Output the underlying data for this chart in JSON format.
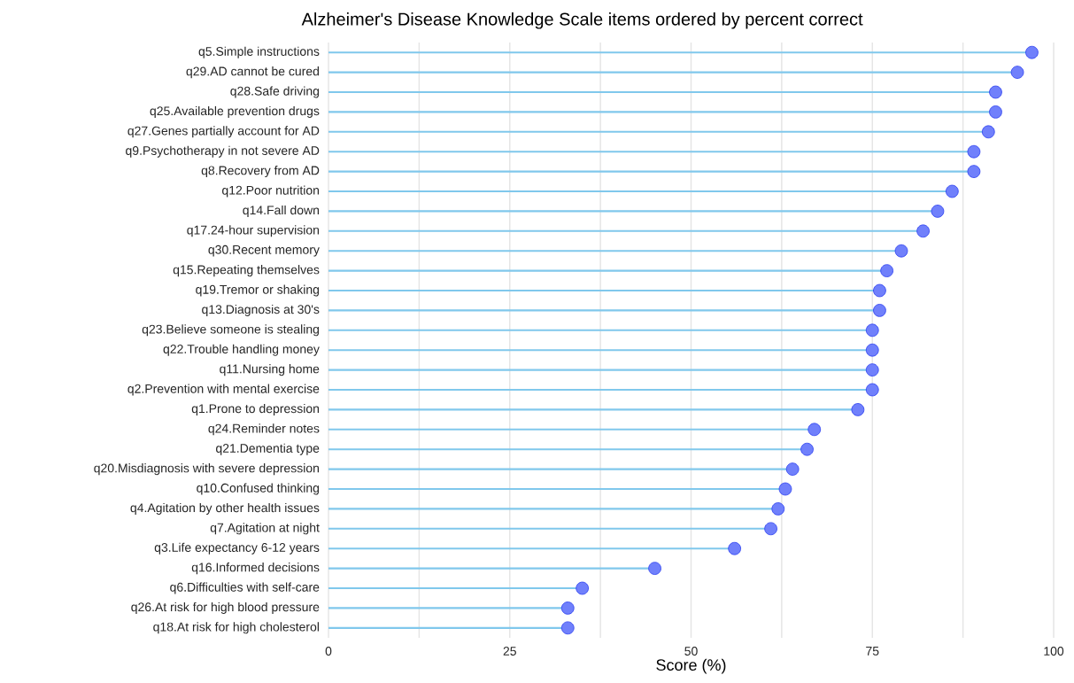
{
  "chart_data": {
    "type": "lollipop",
    "title": "Alzheimer's Disease Knowledge Scale items ordered by percent correct",
    "xlabel": "Score (%)",
    "orientation": "horizontal",
    "categories": [
      "q5.Simple instructions",
      "q29.AD cannot be cured",
      "q28.Safe driving",
      "q25.Available prevention drugs",
      "q27.Genes partially account for AD",
      "q9.Psychotherapy in not severe AD",
      "q8.Recovery from AD",
      "q12.Poor nutrition",
      "q14.Fall down",
      "q17.24-hour supervision",
      "q30.Recent memory",
      "q15.Repeating themselves",
      "q19.Tremor or shaking",
      "q13.Diagnosis at 30's",
      "q23.Believe someone is stealing",
      "q22.Trouble handling money",
      "q11.Nursing home",
      "q2.Prevention with mental exercise",
      "q1.Prone to depression",
      "q24.Reminder notes",
      "q21.Dementia type",
      "q20.Misdiagnosis with severe depression",
      "q10.Confused thinking",
      "q4.Agitation by other health issues",
      "q7.Agitation at night",
      "q3.Life expectancy 6-12 years",
      "q16.Informed decisions",
      "q6.Difficulties with self-care",
      "q26.At risk for high blood pressure",
      "q18.At risk for high cholesterol"
    ],
    "values": [
      97,
      95,
      92,
      92,
      91,
      89,
      89,
      86,
      84,
      82,
      79,
      77,
      76,
      76,
      75,
      75,
      75,
      75,
      73,
      67,
      66,
      64,
      63,
      62,
      61,
      56,
      45,
      35,
      33,
      33
    ],
    "color": "#7080fb",
    "marker": "circle",
    "xlim": [
      0,
      100
    ],
    "xticks": [
      0,
      {
        "value": 12.5,
        "label": null
      },
      25,
      {
        "value": 37.5,
        "label": null
      },
      50,
      {
        "value": 62.5,
        "label": null
      },
      75,
      {
        "value": 87.5,
        "label": null
      },
      100
    ],
    "grid": "x"
  }
}
